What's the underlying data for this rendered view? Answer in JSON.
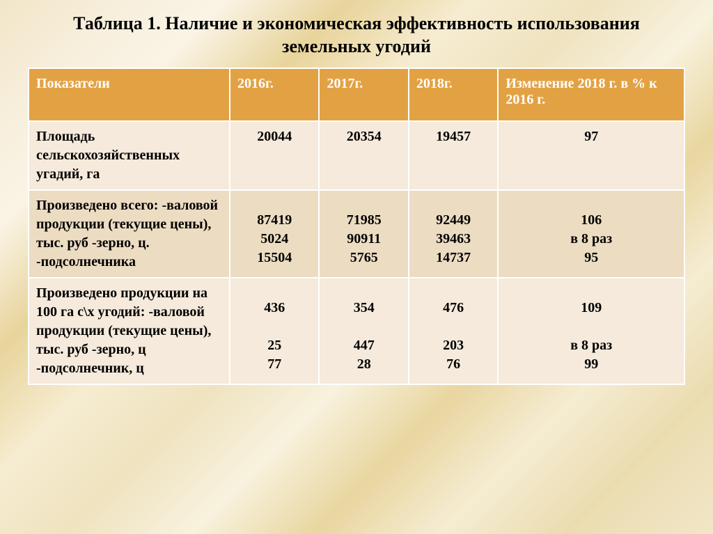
{
  "title": "Таблица 1. Наличие и экономическая эффективность использования земельных угодий",
  "table": {
    "columns": {
      "indicator": "Показатели",
      "y2016": "2016г.",
      "y2017": "2017г.",
      "y2018": "2018г.",
      "change": " Изменение 2018 г. в % к 2016 г."
    },
    "header_bg": "#e2a243",
    "header_fg": "#ffffff",
    "row_bg_a": "#f5eadb",
    "row_bg_b": "#ecdcc2",
    "border_color": "#ffffff",
    "font_size_header": 20,
    "font_size_cell": 20,
    "rows": [
      {
        "indicator": "Площадь сельскохозяйственных угадий, га",
        "y2016": "20044",
        "y2017": "20354",
        "y2018": "19457",
        "change": "97"
      },
      {
        "indicator": "Произведено всего:\n-валовой продукции (текущие цены), тыс. руб\n-зерно, ц.\n-подсолнечника",
        "y2016": "87419\n5024\n15504",
        "y2017": "71985\n90911\n5765",
        "y2018": "92449\n39463\n14737",
        "change": "106\nв 8 раз\n95"
      },
      {
        "indicator": "Произведено продукции на 100 га с\\х угодий:\n-валовой продукции (текущие цены), тыс. руб\n-зерно, ц\n-подсолнечник, ц",
        "y2016": "436\n\n25\n77",
        "y2017": "354\n\n447\n28",
        "y2018": "476\n\n203\n76",
        "change": "109\n\nв 8 раз\n99"
      }
    ]
  }
}
